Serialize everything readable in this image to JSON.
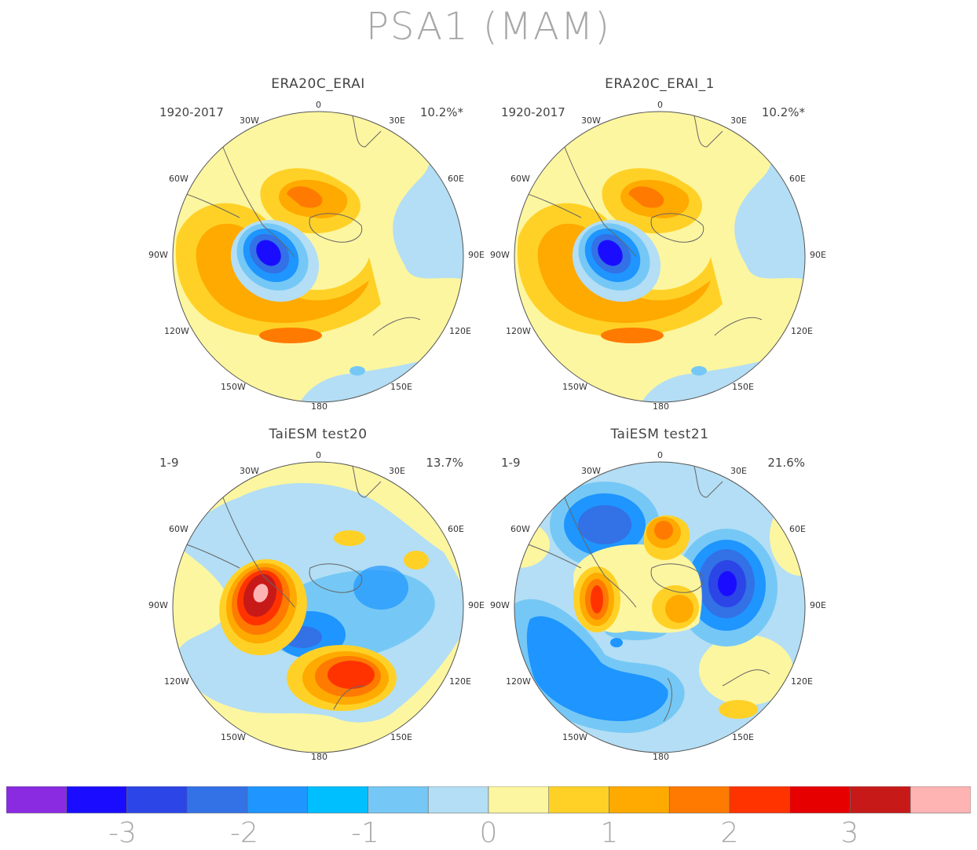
{
  "title": "PSA1 (MAM)",
  "panels": [
    {
      "id": "p1",
      "title": "ERA20C_ERAI",
      "period": "1920-2017",
      "percent": "10.2%*"
    },
    {
      "id": "p2",
      "title": "ERA20C_ERAI_1",
      "period": "1920-2017",
      "percent": "10.2%*"
    },
    {
      "id": "p3",
      "title": "TaiESM test20",
      "period": "1-9",
      "percent": "13.7%"
    },
    {
      "id": "p4",
      "title": "TaiESM test21",
      "period": "1-9",
      "percent": "21.6%"
    }
  ],
  "longitude_labels": {
    "top": "0",
    "lon30w": "30W",
    "lon30e": "30E",
    "lon60w": "60W",
    "lon60e": "60E",
    "lon90w": "90W",
    "lon90e": "90E",
    "lon120w": "120W",
    "lon120e": "120E",
    "lon150w": "150W",
    "lon150e": "150E",
    "bottom": "180"
  },
  "colorbar": {
    "colors": [
      "#8a2be2",
      "#1a0dff",
      "#2b45e6",
      "#3371e6",
      "#1e95ff",
      "#00bfff",
      "#75c8f5",
      "#b3def5",
      "#fdf6a0",
      "#ffd127",
      "#ffaa00",
      "#ff7a00",
      "#ff3300",
      "#e60000",
      "#c81919",
      "#ffb4b4"
    ],
    "tick_labels": [
      "-3",
      "-2",
      "-1",
      "0",
      "1",
      "2",
      "3"
    ]
  }
}
